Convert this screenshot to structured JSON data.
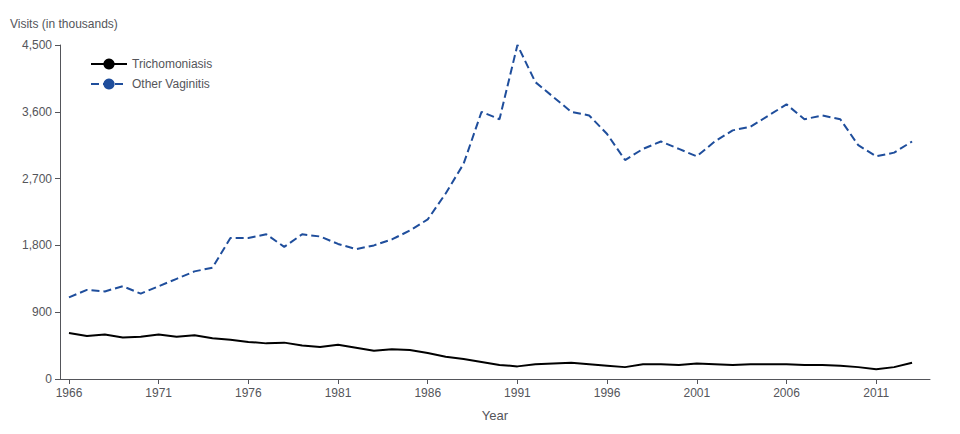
{
  "chart_data": {
    "type": "line",
    "x": [
      1966,
      1967,
      1968,
      1969,
      1970,
      1971,
      1972,
      1973,
      1974,
      1975,
      1976,
      1977,
      1978,
      1979,
      1980,
      1981,
      1982,
      1983,
      1984,
      1985,
      1986,
      1987,
      1988,
      1989,
      1990,
      1991,
      1992,
      1993,
      1994,
      1995,
      1996,
      1997,
      1998,
      1999,
      2000,
      2001,
      2002,
      2003,
      2004,
      2005,
      2006,
      2007,
      2008,
      2009,
      2010,
      2011,
      2012,
      2013
    ],
    "series": [
      {
        "name": "Trichomoniasis",
        "color": "#000000",
        "line_style": "solid",
        "values": [
          620,
          580,
          600,
          560,
          570,
          600,
          570,
          590,
          550,
          530,
          500,
          480,
          490,
          450,
          430,
          460,
          420,
          380,
          400,
          390,
          350,
          300,
          270,
          230,
          190,
          170,
          200,
          210,
          220,
          200,
          180,
          160,
          200,
          200,
          190,
          210,
          200,
          190,
          200,
          200,
          200,
          190,
          190,
          180,
          160,
          130,
          160,
          220
        ]
      },
      {
        "name": "Other Vaginitis",
        "color": "#1f4e9c",
        "line_style": "dashed",
        "values": [
          1100,
          1200,
          1180,
          1250,
          1150,
          1250,
          1350,
          1450,
          1500,
          1900,
          1900,
          1950,
          1780,
          1950,
          1920,
          1820,
          1750,
          1800,
          1880,
          2000,
          2150,
          2500,
          2900,
          3600,
          3500,
          4500,
          4000,
          3800,
          3600,
          3550,
          3300,
          2950,
          3100,
          3200,
          3100,
          3000,
          3200,
          3350,
          3400,
          3550,
          3700,
          3500,
          3550,
          3500,
          3150,
          3000,
          3050,
          3200
        ]
      }
    ],
    "xlabel": "Year",
    "ylabel": "Visits (in thousands)",
    "xlim": [
      1965.5,
      2014
    ],
    "ylim": [
      0,
      4500
    ],
    "xticks": [
      1966,
      1971,
      1976,
      1981,
      1986,
      1991,
      1996,
      2001,
      2006,
      2011
    ],
    "yticks": [
      0,
      900,
      {
        "value": 1800,
        "label": "1,800"
      },
      {
        "value": 2700,
        "label": "2,700"
      },
      {
        "value": 3600,
        "label": "3,600"
      },
      {
        "value": 4500,
        "label": "4,500"
      }
    ],
    "legend": "upper left",
    "grid": false
  }
}
